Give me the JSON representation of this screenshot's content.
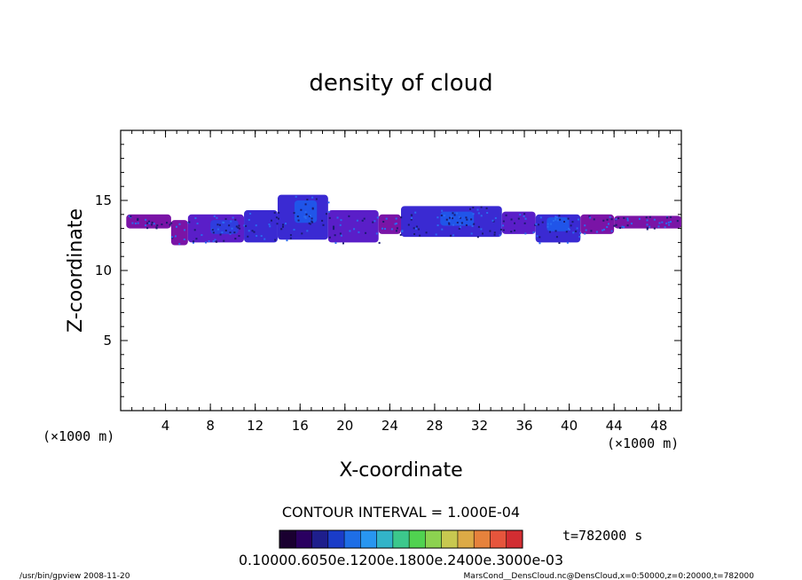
{
  "chart_data": {
    "type": "heatmap",
    "title": "density of cloud",
    "xlabel": "X-coordinate",
    "ylabel": "Z-coordinate",
    "x_unit": "(×1000 m)",
    "y_unit": "(×1000 m)",
    "xlim": [
      0,
      50
    ],
    "ylim": [
      0,
      20
    ],
    "x_ticks": [
      4,
      8,
      12,
      16,
      20,
      24,
      28,
      32,
      36,
      40,
      44,
      48
    ],
    "y_ticks": [
      5,
      10,
      15
    ],
    "grid": false,
    "contour_interval_text": "CONTOUR INTERVAL = 1.000E-04",
    "time_text": "t=782000 s",
    "colorbar": {
      "labels_text": "0.10000.6050e.1200e.1800e.2400e.3000e-03",
      "colors": [
        "#1a0030",
        "#2a0060",
        "#1e1e8c",
        "#1a3cc8",
        "#1e6ee6",
        "#2896f0",
        "#32b4c8",
        "#3cc88c",
        "#50d250",
        "#8cd250",
        "#c8c850",
        "#dcaa46",
        "#e6823c",
        "#e6553c",
        "#d22d32"
      ]
    },
    "cloud_band": [
      {
        "x0": 0.5,
        "x1": 4.5,
        "z0": 13.0,
        "z1": 14.0,
        "level": 0
      },
      {
        "x0": 4.5,
        "x1": 6.0,
        "z0": 11.8,
        "z1": 13.6,
        "level": 0
      },
      {
        "x0": 6.0,
        "x1": 11.0,
        "z0": 12.0,
        "z1": 14.0,
        "level": 1
      },
      {
        "x0": 8.0,
        "x1": 10.5,
        "z0": 12.6,
        "z1": 13.6,
        "level": 3
      },
      {
        "x0": 11.0,
        "x1": 14.0,
        "z0": 12.0,
        "z1": 14.3,
        "level": 2
      },
      {
        "x0": 14.0,
        "x1": 18.5,
        "z0": 12.2,
        "z1": 15.4,
        "level": 2
      },
      {
        "x0": 15.5,
        "x1": 17.5,
        "z0": 13.4,
        "z1": 15.0,
        "level": 4
      },
      {
        "x0": 18.5,
        "x1": 23.0,
        "z0": 12.0,
        "z1": 14.3,
        "level": 1
      },
      {
        "x0": 23.0,
        "x1": 25.0,
        "z0": 12.6,
        "z1": 14.0,
        "level": 0
      },
      {
        "x0": 25.0,
        "x1": 34.0,
        "z0": 12.4,
        "z1": 14.6,
        "level": 2
      },
      {
        "x0": 28.5,
        "x1": 31.5,
        "z0": 13.2,
        "z1": 14.2,
        "level": 4
      },
      {
        "x0": 34.0,
        "x1": 37.0,
        "z0": 12.6,
        "z1": 14.2,
        "level": 1
      },
      {
        "x0": 37.0,
        "x1": 41.0,
        "z0": 12.0,
        "z1": 14.0,
        "level": 2
      },
      {
        "x0": 38.0,
        "x1": 40.0,
        "z0": 12.8,
        "z1": 13.8,
        "level": 4
      },
      {
        "x0": 41.0,
        "x1": 44.0,
        "z0": 12.6,
        "z1": 14.0,
        "level": 0
      },
      {
        "x0": 44.0,
        "x1": 50.0,
        "z0": 13.0,
        "z1": 13.9,
        "level": 0
      }
    ]
  },
  "footer": {
    "left": "/usr/bin/gpview   2008-11-20",
    "right": "MarsCond__DensCloud.nc@DensCloud,x=0:50000,z=0:20000,t=782000"
  }
}
